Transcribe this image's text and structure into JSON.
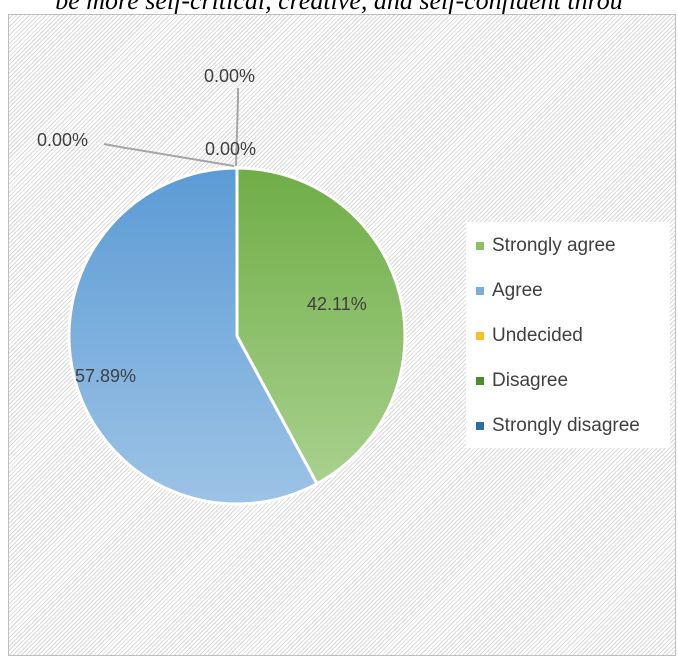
{
  "title": "be more self-critical, creative, and self-confident throu",
  "chart_data": {
    "type": "pie",
    "title": "be more self-critical, creative, and self-confident throu",
    "legend_position": "right",
    "slices": [
      {
        "name": "Strongly agree",
        "value": 42.11,
        "label": "42.11%",
        "color": "#8cbf5e"
      },
      {
        "name": "Agree",
        "value": 57.89,
        "label": "57.89%",
        "color": "#7aaedc"
      },
      {
        "name": "Undecided",
        "value": 0.0,
        "label": "0.00%",
        "color": "#f7c026"
      },
      {
        "name": "Disagree",
        "value": 0.0,
        "label": "0.00%",
        "color": "#4c8a2e"
      },
      {
        "name": "Strongly disagree",
        "value": 0.0,
        "label": "0.00%",
        "color": "#2e6ea8"
      }
    ]
  }
}
